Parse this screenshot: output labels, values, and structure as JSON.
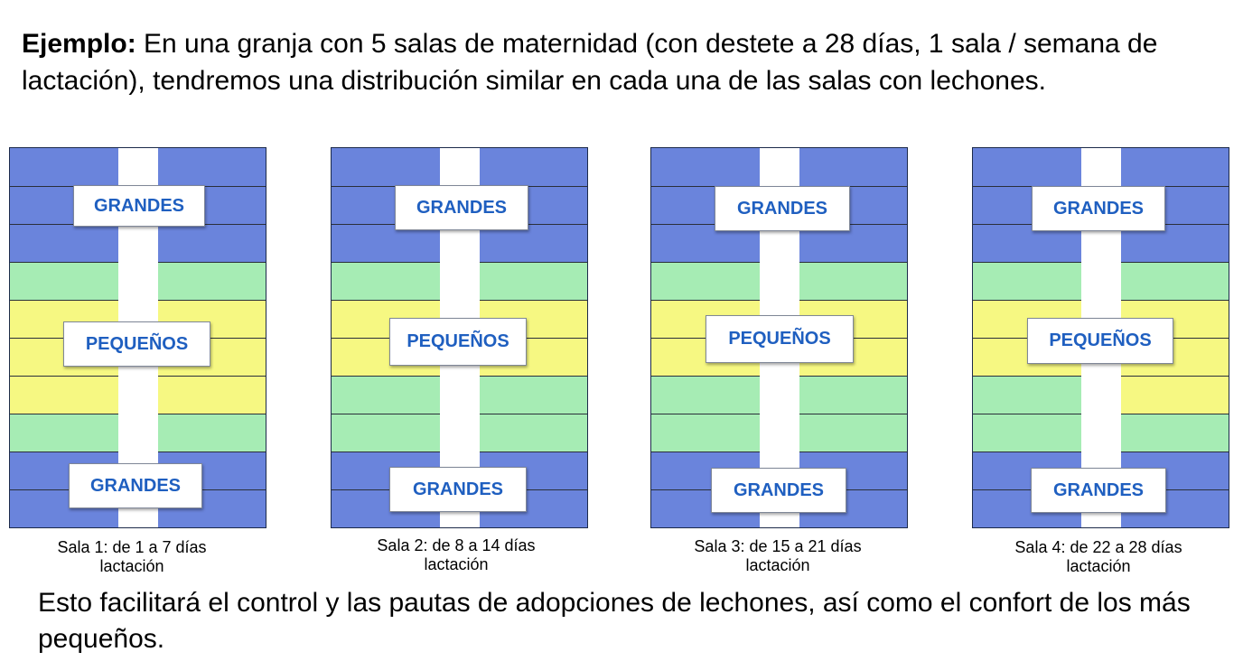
{
  "intro": {
    "lead": "Ejemplo:",
    "text": " En una granja con 5 salas de maternidad (con destete a 28 días, 1 sala / semana de lactación), tendremos una distribución similar en cada una de las salas con lechones."
  },
  "outro": "Esto facilitará el control y las pautas de adopciones de lechones, así como el confort de los más pequeños.",
  "colors": {
    "grandes": "#6a84dc",
    "transition": "#a6ecb4",
    "pequenos": "#f6f882",
    "corridor": "#ffffff",
    "label_text": "#1f5fc0"
  },
  "rooms": [
    {
      "caption_line1": "Sala 1: de 1 a 7 días",
      "caption_line2": "lactación",
      "label_top": "GRANDES",
      "label_middle": "PEQUEÑOS",
      "label_bottom": "GRANDES",
      "left_rows": [
        "grandes",
        "grandes",
        "grandes",
        "transition",
        "pequenos",
        "pequenos",
        "pequenos",
        "transition",
        "grandes",
        "grandes"
      ],
      "right_rows": [
        "grandes",
        "grandes",
        "grandes",
        "transition",
        "pequenos",
        "pequenos",
        "pequenos",
        "transition",
        "grandes",
        "grandes"
      ]
    },
    {
      "caption_line1": "Sala 2: de 8 a 14 días",
      "caption_line2": "lactación",
      "label_top": "GRANDES",
      "label_middle": "PEQUEÑOS",
      "label_bottom": "GRANDES",
      "left_rows": [
        "grandes",
        "grandes",
        "grandes",
        "transition",
        "pequenos",
        "pequenos",
        "transition",
        "transition",
        "grandes",
        "grandes"
      ],
      "right_rows": [
        "grandes",
        "grandes",
        "grandes",
        "transition",
        "pequenos",
        "pequenos",
        "transition",
        "transition",
        "grandes",
        "grandes"
      ]
    },
    {
      "caption_line1": "Sala 3: de 15 a 21 días",
      "caption_line2": "lactación",
      "label_top": "GRANDES",
      "label_middle": "PEQUEÑOS",
      "label_bottom": "GRANDES",
      "left_rows": [
        "grandes",
        "grandes",
        "grandes",
        "transition",
        "pequenos",
        "pequenos",
        "transition",
        "transition",
        "grandes",
        "grandes"
      ],
      "right_rows": [
        "grandes",
        "grandes",
        "grandes",
        "transition",
        "pequenos",
        "pequenos",
        "transition",
        "transition",
        "grandes",
        "grandes"
      ]
    },
    {
      "caption_line1": "Sala 4: de 22 a 28 días",
      "caption_line2": "lactación",
      "label_top": "GRANDES",
      "label_middle": "PEQUEÑOS",
      "label_bottom": "GRANDES",
      "left_rows": [
        "grandes",
        "grandes",
        "grandes",
        "transition",
        "pequenos",
        "pequenos",
        "transition",
        "transition",
        "grandes",
        "grandes"
      ],
      "right_rows": [
        "grandes",
        "grandes",
        "grandes",
        "transition",
        "pequenos",
        "pequenos",
        "pequenos",
        "transition",
        "grandes",
        "grandes"
      ]
    }
  ]
}
